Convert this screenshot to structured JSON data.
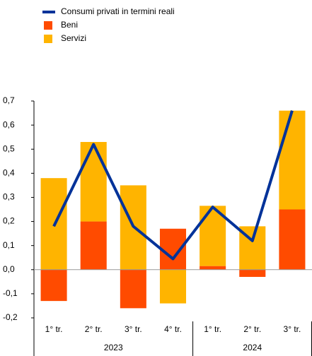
{
  "chart_data": {
    "type": "bar",
    "categories": [
      "1° tr.",
      "2° tr.",
      "3° tr.",
      "4° tr.",
      "1° tr.",
      "2° tr.",
      "3° tr."
    ],
    "groups": [
      {
        "name": "2023",
        "span": 4
      },
      {
        "name": "2024",
        "span": 3
      }
    ],
    "series": [
      {
        "name": "Consumi privati in termini reali",
        "type": "line",
        "color": "#003299",
        "values": [
          0.18,
          0.52,
          0.18,
          0.045,
          0.26,
          0.12,
          0.66
        ]
      },
      {
        "name": "Beni",
        "type": "bar",
        "color": "#ff4b00",
        "values": [
          -0.13,
          0.2,
          -0.16,
          0.17,
          0.015,
          -0.03,
          0.25
        ]
      },
      {
        "name": "Servizi",
        "type": "bar",
        "color": "#ffb400",
        "values": [
          0.38,
          0.33,
          0.35,
          -0.14,
          0.25,
          0.18,
          0.41
        ]
      }
    ],
    "ylim": [
      -0.2,
      0.7
    ],
    "yticks": [
      {
        "value": -0.2,
        "label": "-0,2"
      },
      {
        "value": -0.1,
        "label": "-0,1"
      },
      {
        "value": 0,
        "label": "0,0"
      },
      {
        "value": 0.1,
        "label": "0,1"
      },
      {
        "value": 0.2,
        "label": "0,2"
      },
      {
        "value": 0.3,
        "label": "0,3"
      },
      {
        "value": 0.4,
        "label": "0,4"
      },
      {
        "value": 0.5,
        "label": "0,5"
      },
      {
        "value": 0.6,
        "label": "0,6"
      },
      {
        "value": 0.7,
        "label": "0,7"
      }
    ]
  }
}
